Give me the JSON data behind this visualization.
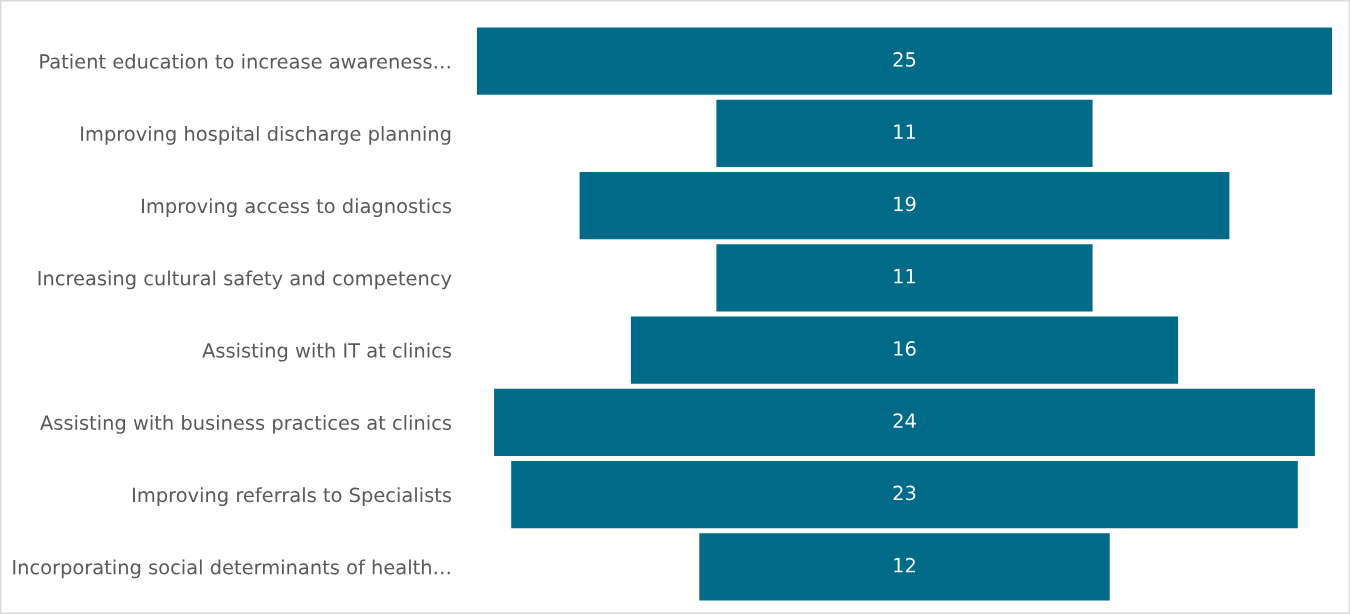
{
  "chart_data": {
    "type": "other",
    "categories": [
      "Patient education to increase awareness…",
      "Improving hospital discharge planning",
      "Improving access to diagnostics",
      "Increasing cultural safety and competency",
      "Assisting with IT at clinics",
      "Assisting with business practices at clinics",
      "Improving referrals to Specialists",
      "Incorporating social determinants of health…"
    ],
    "values": [
      25,
      11,
      19,
      11,
      16,
      24,
      23,
      12
    ],
    "color": "#006a89",
    "data_labels": true
  }
}
